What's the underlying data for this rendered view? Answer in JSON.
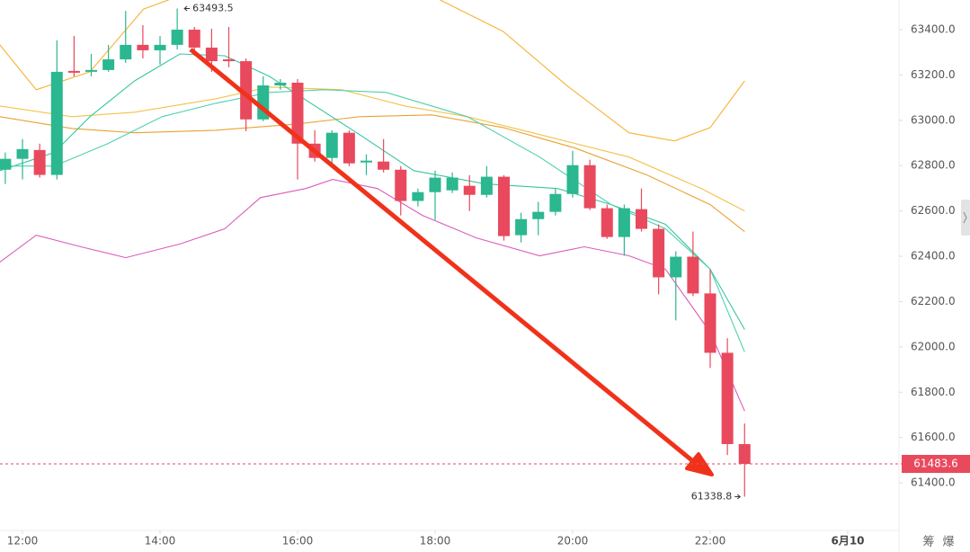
{
  "chart_data": {
    "type": "candlestick",
    "up_color": "#2bb78f",
    "down_color": "#e9495d",
    "x": [
      11.75,
      12,
      12.25,
      12.5,
      12.75,
      13,
      13.25,
      13.5,
      13.75,
      14,
      14.25,
      14.5,
      14.75,
      15,
      15.25,
      15.5,
      15.75,
      16,
      16.25,
      16.5,
      16.75,
      17,
      17.25,
      17.5,
      17.75,
      18,
      18.25,
      18.5,
      18.75,
      19,
      19.25,
      19.5,
      19.75,
      20,
      20.25,
      20.5,
      20.75,
      21,
      21.25,
      21.5,
      21.75,
      22,
      22.25,
      22.5
    ],
    "open": [
      62782,
      62830,
      62869,
      62759,
      63218,
      63214,
      63222,
      63269,
      63333,
      63309,
      63333,
      63400,
      63321,
      63269,
      63261,
      63004,
      63154,
      63166,
      62897,
      62834,
      62945,
      62814,
      62818,
      62782,
      62644,
      62683,
      62691,
      62711,
      62671,
      62751,
      62493,
      62564,
      62596,
      62675,
      62802,
      62612,
      62485,
      62608,
      62521,
      62307,
      62398,
      62236,
      61974,
      61571
    ],
    "high": [
      62858,
      62917,
      62897,
      63353,
      63372,
      63293,
      63333,
      63483,
      63420,
      63372,
      63493.5,
      63412,
      63404,
      63412,
      63273,
      63194,
      63182,
      63182,
      62956,
      62956,
      62956,
      62850,
      62917,
      62798,
      62699,
      62778,
      62770,
      62758,
      62798,
      62758,
      62592,
      62640,
      62699,
      62865,
      62826,
      62628,
      62628,
      62699,
      62541,
      62422,
      62509,
      62343,
      62038,
      61662
    ],
    "low": [
      62719,
      62739,
      62747,
      62739,
      63194,
      63194,
      63214,
      63253,
      63273,
      63246,
      63313,
      63285,
      63214,
      63234,
      62952,
      62996,
      63135,
      62739,
      62818,
      62798,
      62798,
      62758,
      62770,
      62580,
      62620,
      62560,
      62679,
      62600,
      62659,
      62469,
      62461,
      62493,
      62580,
      62659,
      62604,
      62477,
      62402,
      62509,
      62232,
      62117,
      62224,
      61907,
      61523,
      61338.8
    ],
    "close": [
      62830,
      62873,
      62759,
      63214,
      63210,
      63222,
      63269,
      63333,
      63309,
      63333,
      63400,
      63321,
      63261,
      63261,
      63004,
      63154,
      63166,
      62897,
      62834,
      62945,
      62810,
      62822,
      62782,
      62644,
      62683,
      62747,
      62747,
      62671,
      62751,
      62489,
      62564,
      62596,
      62675,
      62802,
      62612,
      62485,
      62612,
      62521,
      62307,
      62398,
      62236,
      61974,
      61571,
      61483.6
    ],
    "overlays": [
      {
        "color": "#f5b335",
        "x": [
          11.67,
          12.2,
          12.98,
          13.76,
          14.29,
          17.95,
          18.99,
          19.91,
          20.82,
          21.48,
          22.0,
          22.5
        ],
        "values": [
          63333,
          63135,
          63214,
          63491,
          63550,
          63550,
          63392,
          63155,
          62945,
          62909,
          62968,
          63174
        ]
      },
      {
        "color": "#f3c24a",
        "x": [
          11.67,
          12.72,
          13.63,
          14.81,
          15.59,
          16.64,
          17.56,
          18.47,
          19.52,
          20.82,
          21.87,
          22.5
        ],
        "values": [
          63063,
          63016,
          63036,
          63095,
          63147,
          63135,
          63063,
          63016,
          62937,
          62838,
          62699,
          62600
        ]
      },
      {
        "color": "#eaa132",
        "x": [
          11.67,
          12.72,
          13.63,
          14.81,
          15.99,
          16.9,
          17.95,
          18.99,
          20.04,
          21.08,
          22.0,
          22.5
        ],
        "values": [
          63016,
          62964,
          62945,
          62956,
          62984,
          63016,
          63024,
          62968,
          62877,
          62759,
          62628,
          62509
        ]
      },
      {
        "color": "#37c6a0",
        "x": [
          11.67,
          12.46,
          12.98,
          13.63,
          14.29,
          14.94,
          15.59,
          15.99,
          16.9,
          17.69,
          18.73,
          19.78,
          20.56,
          21.35,
          22.0,
          22.5
        ],
        "values": [
          62778,
          62858,
          63016,
          63174,
          63293,
          63285,
          63194,
          63115,
          62937,
          62778,
          62719,
          62699,
          62628,
          62541,
          62343,
          62077
        ]
      },
      {
        "color": "#4fd0b0",
        "x": [
          11.67,
          12.46,
          13.24,
          14.03,
          14.81,
          15.59,
          16.38,
          17.29,
          18.47,
          19.52,
          20.56,
          21.35,
          22.0,
          22.5
        ],
        "values": [
          62798,
          62798,
          62897,
          63016,
          63075,
          63123,
          63135,
          63123,
          63016,
          62838,
          62628,
          62521,
          62343,
          61978
        ]
      },
      {
        "color": "#db5cbb",
        "x": [
          11.67,
          12.2,
          12.85,
          13.5,
          14.29,
          14.94,
          15.46,
          16.12,
          16.51,
          17.16,
          17.82,
          18.6,
          19.52,
          20.17,
          20.82,
          21.35,
          22.0,
          22.5
        ],
        "values": [
          62374,
          62493,
          62442,
          62394,
          62454,
          62521,
          62659,
          62699,
          62739,
          62699,
          62580,
          62481,
          62402,
          62442,
          62402,
          62343,
          62065,
          61717
        ]
      }
    ],
    "xlim": [
      11.673,
      24.745
    ],
    "ylim": [
      61190,
      63531
    ],
    "xticks": [
      {
        "value": 12,
        "label": "12:00"
      },
      {
        "value": 14,
        "label": "14:00"
      },
      {
        "value": 16,
        "label": "16:00"
      },
      {
        "value": 18,
        "label": "18:00"
      },
      {
        "value": 20,
        "label": "20:00"
      },
      {
        "value": 22,
        "label": "22:00"
      },
      {
        "value": 24,
        "label": "6月10"
      }
    ],
    "yticks": [
      {
        "value": 61400,
        "label": "61400.0"
      },
      {
        "value": 61600,
        "label": "61600.0"
      },
      {
        "value": 61800,
        "label": "61800.0"
      },
      {
        "value": 62000,
        "label": "62000.0"
      },
      {
        "value": 62200,
        "label": "62200.0"
      },
      {
        "value": 62400,
        "label": "62400.0"
      },
      {
        "value": 62600,
        "label": "62600.0"
      },
      {
        "value": 62800,
        "label": "62800.0"
      },
      {
        "value": 63000,
        "label": "63000.0"
      },
      {
        "value": 63200,
        "label": "63200.0"
      },
      {
        "value": 63400,
        "label": "63400.0"
      }
    ],
    "high_mark_index": 10,
    "low_mark_index": 43
  },
  "toolbar_labels": [
    "筹",
    "爆"
  ]
}
